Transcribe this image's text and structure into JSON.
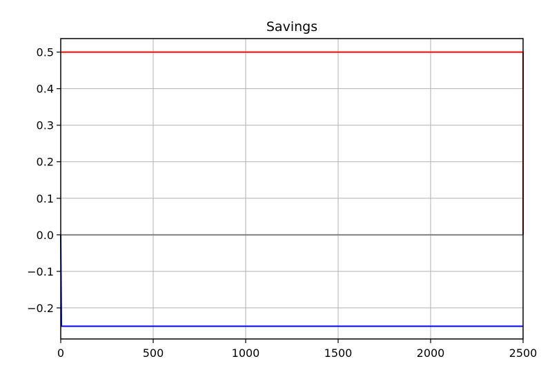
{
  "chart_data": {
    "type": "line",
    "title": "Savings",
    "xlabel": "",
    "ylabel": "",
    "xlim": [
      0,
      2500
    ],
    "ylim": [
      -0.285,
      0.537
    ],
    "grid": true,
    "x_ticks": [
      0,
      500,
      1000,
      1500,
      2000,
      2500
    ],
    "x_tick_labels": [
      "0",
      "500",
      "1000",
      "1500",
      "2000",
      "2500"
    ],
    "y_ticks": [
      0.5,
      0.4,
      0.3,
      0.2,
      0.1,
      0.0,
      -0.1,
      -0.2
    ],
    "y_tick_labels": [
      "0.5",
      "0.4",
      "0.3",
      "0.2",
      "0.1",
      "0.0",
      "−0.1",
      "−0.2"
    ],
    "series": [
      {
        "color": "#ff0000",
        "x": [
          0,
          2500,
          2500
        ],
        "y": [
          0.5,
          0.5,
          0.0
        ]
      },
      {
        "color": "#0000ff",
        "x": [
          0,
          4,
          2500
        ],
        "y": [
          0.0,
          -0.25,
          -0.25
        ]
      },
      {
        "color": "#808080",
        "x": [
          0,
          2500
        ],
        "y": [
          0.0,
          0.0
        ]
      }
    ]
  }
}
